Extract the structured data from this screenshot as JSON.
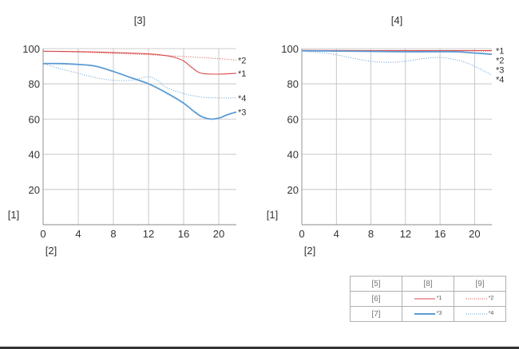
{
  "chart_data": [
    {
      "type": "line",
      "title": "[3]",
      "ylabel": "[1]",
      "xlabel": "[2]",
      "xlim": [
        0,
        22
      ],
      "ylim": [
        0,
        100
      ],
      "x_ticks": [
        0,
        4,
        8,
        12,
        16,
        20
      ],
      "y_ticks": [
        20,
        40,
        60,
        80,
        100
      ],
      "grid": true,
      "series": [
        {
          "name": "*1",
          "color": "#d94a4a",
          "style": "solid-thin",
          "x": [
            0,
            4,
            8,
            12,
            14,
            15,
            16,
            17,
            18,
            20,
            22
          ],
          "y": [
            98.5,
            98.3,
            97.8,
            97.0,
            96.0,
            95.0,
            93.0,
            89.0,
            86.0,
            85.5,
            86.0
          ]
        },
        {
          "name": "*2",
          "color": "#d94a4a",
          "style": "dotted",
          "x": [
            0,
            4,
            8,
            12,
            16,
            20,
            22
          ],
          "y": [
            98.5,
            98.0,
            97.3,
            96.5,
            95.5,
            94.3,
            93.5
          ]
        },
        {
          "name": "*3",
          "color": "#5b9bd5",
          "style": "solid-thick",
          "x": [
            0,
            2,
            4,
            6,
            8,
            10,
            12,
            14,
            16,
            17,
            18,
            19,
            20,
            21,
            22
          ],
          "y": [
            91.5,
            91.5,
            91.0,
            90.0,
            87.0,
            83.5,
            80.0,
            75.0,
            69.0,
            65.0,
            61.5,
            60.0,
            60.5,
            62.5,
            64.0
          ]
        },
        {
          "name": "*4",
          "color": "#5b9bd5",
          "style": "dotted",
          "x": [
            0,
            2,
            4,
            6,
            8,
            10,
            11,
            12,
            13,
            14,
            16,
            18,
            20,
            22
          ],
          "y": [
            91.5,
            88.5,
            86.0,
            83.5,
            82.0,
            82.0,
            83.0,
            84.0,
            82.0,
            78.0,
            74.5,
            72.5,
            72.0,
            72.0
          ]
        }
      ],
      "end_labels": [
        "*2",
        "*1",
        "*4",
        "*3"
      ]
    },
    {
      "type": "line",
      "title": "[4]",
      "ylabel": "[1]",
      "xlabel": "[2]",
      "xlim": [
        0,
        22
      ],
      "ylim": [
        0,
        100
      ],
      "x_ticks": [
        0,
        4,
        8,
        12,
        16,
        20
      ],
      "y_ticks": [
        20,
        40,
        60,
        80,
        100
      ],
      "grid": true,
      "series": [
        {
          "name": "*1",
          "color": "#d94a4a",
          "style": "solid-thin",
          "x": [
            0,
            8,
            16,
            20,
            22
          ],
          "y": [
            99.0,
            98.9,
            98.9,
            98.9,
            98.9
          ]
        },
        {
          "name": "*2",
          "color": "#d94a4a",
          "style": "dotted",
          "x": [
            0,
            8,
            16,
            20,
            22
          ],
          "y": [
            98.9,
            98.8,
            98.7,
            98.6,
            98.5
          ]
        },
        {
          "name": "*3",
          "color": "#5b9bd5",
          "style": "solid-thick",
          "x": [
            0,
            8,
            12,
            16,
            18,
            20,
            22
          ],
          "y": [
            98.8,
            98.4,
            98.2,
            98.3,
            98.2,
            97.5,
            96.8
          ]
        },
        {
          "name": "*4",
          "color": "#5b9bd5",
          "style": "dotted",
          "x": [
            0,
            2,
            4,
            6,
            8,
            10,
            12,
            14,
            16,
            18,
            19,
            20,
            21,
            22
          ],
          "y": [
            98.5,
            97.8,
            96.5,
            94.5,
            92.8,
            92.2,
            92.8,
            94.3,
            95.0,
            93.5,
            92.0,
            90.0,
            87.5,
            85.0
          ]
        }
      ],
      "end_labels": [
        "*1",
        "*2",
        "*3",
        "*4"
      ]
    }
  ],
  "legend_table": {
    "header": [
      "[5]",
      "[8]",
      "[9]"
    ],
    "rows": [
      {
        "label": "[6]",
        "solid_label": "*1",
        "dotted_label": "*2",
        "color": "#d94a4a"
      },
      {
        "label": "[7]",
        "solid_label": "*3",
        "dotted_label": "*4",
        "color": "#5b9bd5"
      }
    ]
  }
}
